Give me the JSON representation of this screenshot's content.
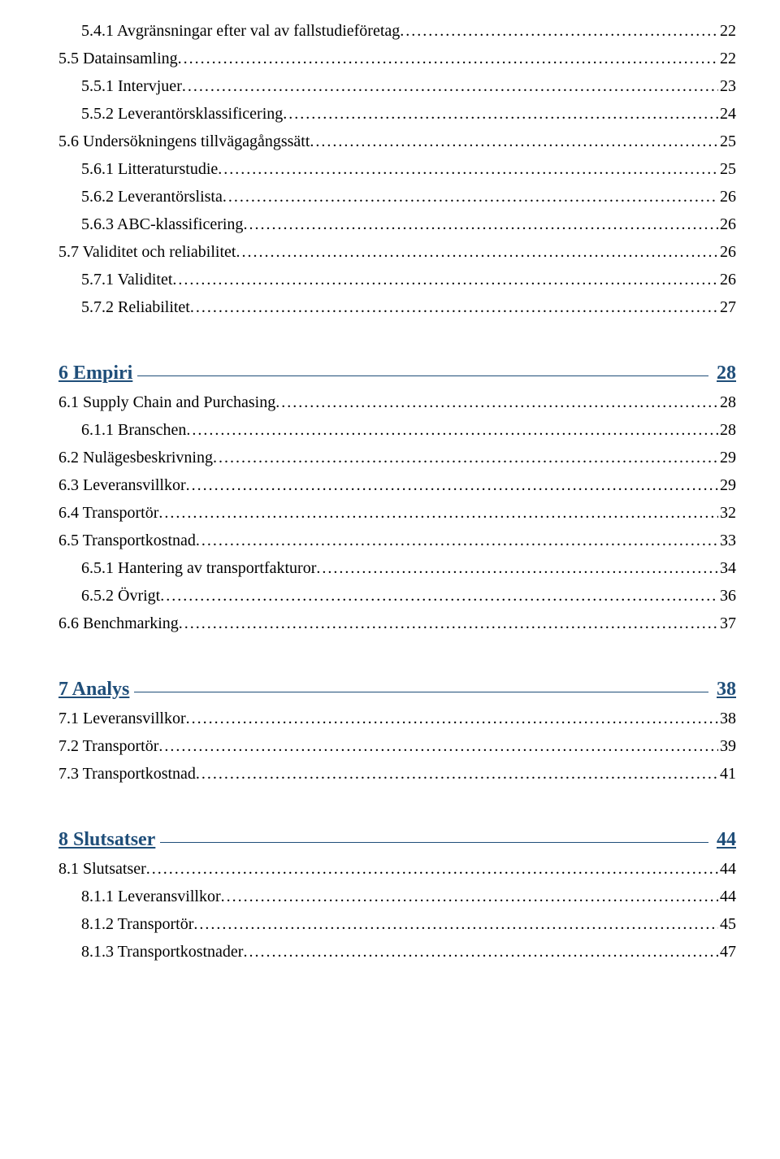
{
  "colors": {
    "text": "#000000",
    "heading": "#1f4e79",
    "background": "#ffffff"
  },
  "typography": {
    "body_font": "Times New Roman",
    "body_size_pt": 12,
    "heading_size_pt": 14,
    "heading_weight": "bold"
  },
  "toc": {
    "preEntries": [
      {
        "level": 2,
        "label": "5.4.1 Avgränsningar efter val av fallstudieföretag",
        "page": "22"
      },
      {
        "level": 1,
        "label": "5.5 Datainsamling",
        "page": "22"
      },
      {
        "level": 2,
        "label": "5.5.1 Intervjuer",
        "page": "23"
      },
      {
        "level": 2,
        "label": "5.5.2 Leverantörsklassificering",
        "page": "24"
      },
      {
        "level": 1,
        "label": "5.6 Undersökningens tillvägagångssätt",
        "page": "25"
      },
      {
        "level": 2,
        "label": "5.6.1 Litteraturstudie",
        "page": "25"
      },
      {
        "level": 2,
        "label": "5.6.2 Leverantörslista",
        "page": "26"
      },
      {
        "level": 2,
        "label": "5.6.3 ABC-klassificering",
        "page": "26"
      },
      {
        "level": 1,
        "label": "5.7 Validitet och reliabilitet",
        "page": "26"
      },
      {
        "level": 2,
        "label": "5.7.1 Validitet",
        "page": "26"
      },
      {
        "level": 2,
        "label": "5.7.2 Reliabilitet",
        "page": "27"
      }
    ],
    "sections": [
      {
        "title": "6 Empiri",
        "page": "28",
        "entries": [
          {
            "level": 1,
            "label": "6.1 Supply Chain and Purchasing",
            "page": "28"
          },
          {
            "level": 2,
            "label": "6.1.1 Branschen",
            "page": "28"
          },
          {
            "level": 1,
            "label": "6.2 Nulägesbeskrivning",
            "page": "29"
          },
          {
            "level": 1,
            "label": "6.3 Leveransvillkor",
            "page": "29"
          },
          {
            "level": 1,
            "label": "6.4 Transportör",
            "page": "32"
          },
          {
            "level": 1,
            "label": "6.5 Transportkostnad",
            "page": "33"
          },
          {
            "level": 2,
            "label": "6.5.1 Hantering av transportfakturor",
            "page": "34"
          },
          {
            "level": 2,
            "label": "6.5.2 Övrigt",
            "page": "36"
          },
          {
            "level": 1,
            "label": "6.6 Benchmarking",
            "page": "37"
          }
        ]
      },
      {
        "title": "7 Analys",
        "page": "38",
        "entries": [
          {
            "level": 1,
            "label": "7.1 Leveransvillkor",
            "page": "38"
          },
          {
            "level": 1,
            "label": "7.2 Transportör",
            "page": "39"
          },
          {
            "level": 1,
            "label": "7.3 Transportkostnad",
            "page": "41"
          }
        ]
      },
      {
        "title": "8 Slutsatser",
        "page": "44",
        "entries": [
          {
            "level": 1,
            "label": "8.1 Slutsatser",
            "page": "44"
          },
          {
            "level": 2,
            "label": "8.1.1 Leveransvillkor",
            "page": "44"
          },
          {
            "level": 2,
            "label": "8.1.2 Transportör",
            "page": "45"
          },
          {
            "level": 2,
            "label": "8.1.3 Transportkostnader",
            "page": "47"
          }
        ]
      }
    ]
  }
}
